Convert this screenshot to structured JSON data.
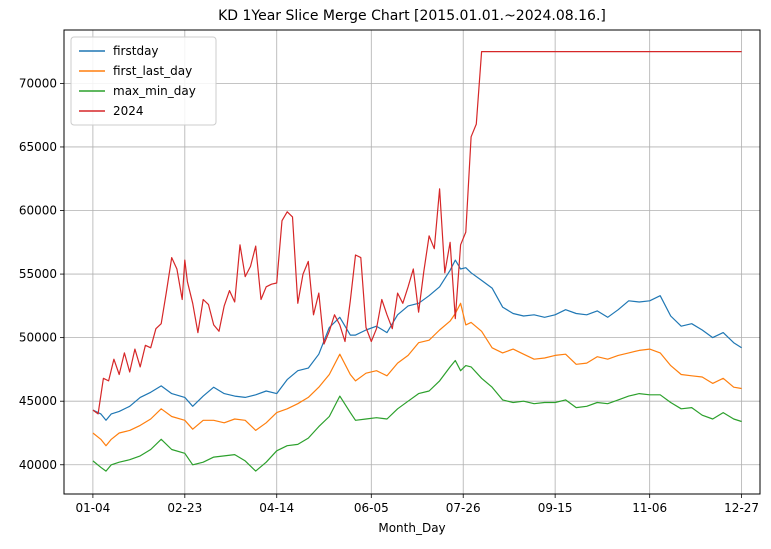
{
  "chart_data": {
    "type": "line",
    "title": "KD 1Year Slice Merge Chart [2015.01.01.~2024.08.16.]",
    "xlabel": "Month_Day",
    "ylabel": "",
    "x_tick_labels": [
      "01-04",
      "02-23",
      "04-14",
      "06-05",
      "07-26",
      "09-15",
      "11-06",
      "12-27"
    ],
    "x_tick_index": [
      0,
      35,
      70,
      106,
      141,
      176,
      212,
      247
    ],
    "xlim": [
      -11,
      254
    ],
    "ylim": [
      37700,
      74200
    ],
    "y_ticks": [
      40000,
      45000,
      50000,
      55000,
      60000,
      65000,
      70000
    ],
    "y_tick_labels": [
      "40000",
      "45000",
      "50000",
      "55000",
      "60000",
      "65000",
      "70000"
    ],
    "grid": true,
    "legend_position": "top-left",
    "series": [
      {
        "name": "firstday",
        "color": "#1f77b4",
        "x": [
          0,
          3,
          5,
          7,
          10,
          14,
          18,
          22,
          26,
          30,
          35,
          38,
          42,
          46,
          50,
          54,
          58,
          62,
          66,
          70,
          74,
          78,
          82,
          86,
          90,
          94,
          98,
          100,
          104,
          108,
          112,
          116,
          120,
          124,
          128,
          132,
          136,
          138,
          140,
          142,
          144,
          148,
          152,
          156,
          160,
          164,
          168,
          172,
          176,
          180,
          184,
          188,
          192,
          196,
          200,
          204,
          208,
          212,
          216,
          220,
          224,
          228,
          232,
          236,
          240,
          244,
          247
        ],
        "y": [
          44300,
          44000,
          43500,
          44000,
          44200,
          44600,
          45300,
          45700,
          46200,
          45600,
          45300,
          44600,
          45400,
          46100,
          45600,
          45400,
          45300,
          45500,
          45800,
          45600,
          46700,
          47400,
          47600,
          48700,
          50800,
          51600,
          50200,
          50200,
          50600,
          50900,
          50400,
          51800,
          52500,
          52700,
          53300,
          54000,
          55300,
          56100,
          55400,
          55500,
          55100,
          54500,
          53900,
          52400,
          51900,
          51700,
          51800,
          51600,
          51800,
          52200,
          51900,
          51800,
          52100,
          51600,
          52200,
          52900,
          52800,
          52900,
          53300,
          51700,
          50900,
          51100,
          50600,
          50000,
          50400,
          49600,
          49200
        ]
      },
      {
        "name": "first_last_day",
        "color": "#ff7f0e",
        "x": [
          0,
          3,
          5,
          7,
          10,
          14,
          18,
          22,
          26,
          30,
          35,
          38,
          42,
          46,
          50,
          54,
          58,
          62,
          66,
          70,
          74,
          78,
          82,
          86,
          90,
          94,
          98,
          100,
          104,
          108,
          112,
          116,
          120,
          124,
          128,
          132,
          136,
          138,
          140,
          142,
          144,
          148,
          152,
          156,
          160,
          164,
          168,
          172,
          176,
          180,
          184,
          188,
          192,
          196,
          200,
          204,
          208,
          212,
          216,
          220,
          224,
          228,
          232,
          236,
          240,
          244,
          247
        ],
        "y": [
          42500,
          42000,
          41500,
          42000,
          42500,
          42700,
          43100,
          43600,
          44400,
          43800,
          43500,
          42800,
          43500,
          43500,
          43300,
          43600,
          43500,
          42700,
          43300,
          44100,
          44400,
          44800,
          45300,
          46100,
          47100,
          48700,
          47100,
          46600,
          47200,
          47400,
          47000,
          48000,
          48600,
          49600,
          49800,
          50600,
          51300,
          51900,
          52700,
          51000,
          51200,
          50500,
          49200,
          48800,
          49100,
          48700,
          48300,
          48400,
          48600,
          48700,
          47900,
          48000,
          48500,
          48300,
          48600,
          48800,
          49000,
          49100,
          48800,
          47800,
          47100,
          47000,
          46900,
          46400,
          46800,
          46100,
          46000
        ]
      },
      {
        "name": "max_min_day",
        "color": "#2ca02c",
        "x": [
          0,
          3,
          5,
          7,
          10,
          14,
          18,
          22,
          26,
          30,
          35,
          38,
          42,
          46,
          50,
          54,
          58,
          62,
          66,
          70,
          74,
          78,
          82,
          86,
          90,
          94,
          98,
          100,
          104,
          108,
          112,
          116,
          120,
          124,
          128,
          132,
          136,
          138,
          140,
          142,
          144,
          148,
          152,
          156,
          160,
          164,
          168,
          172,
          176,
          180,
          184,
          188,
          192,
          196,
          200,
          204,
          208,
          212,
          216,
          220,
          224,
          228,
          232,
          236,
          240,
          244,
          247
        ],
        "y": [
          40300,
          39800,
          39500,
          40000,
          40200,
          40400,
          40700,
          41200,
          42000,
          41200,
          40900,
          40000,
          40200,
          40600,
          40700,
          40800,
          40300,
          39500,
          40200,
          41100,
          41500,
          41600,
          42100,
          43000,
          43800,
          45400,
          44100,
          43500,
          43600,
          43700,
          43600,
          44400,
          45000,
          45600,
          45800,
          46600,
          47700,
          48200,
          47400,
          47800,
          47700,
          46800,
          46100,
          45100,
          44900,
          45000,
          44800,
          44900,
          44900,
          45100,
          44500,
          44600,
          44900,
          44800,
          45100,
          45400,
          45600,
          45500,
          45500,
          44900,
          44400,
          44500,
          43900,
          43600,
          44100,
          43600,
          43400
        ]
      },
      {
        "name": "2024",
        "color": "#d62728",
        "x": [
          0,
          2,
          4,
          6,
          8,
          10,
          12,
          14,
          16,
          18,
          20,
          22,
          24,
          26,
          28,
          30,
          32,
          34,
          35,
          36,
          38,
          40,
          42,
          44,
          46,
          48,
          50,
          52,
          54,
          56,
          58,
          60,
          62,
          64,
          66,
          68,
          70,
          72,
          74,
          76,
          78,
          80,
          82,
          84,
          86,
          88,
          90,
          92,
          94,
          96,
          98,
          100,
          102,
          104,
          106,
          108,
          110,
          112,
          114,
          116,
          118,
          120,
          122,
          124,
          126,
          128,
          130,
          132,
          134,
          136,
          138,
          140,
          142,
          144,
          146,
          148,
          150,
          152,
          154,
          156,
          247
        ],
        "y": [
          44300,
          44000,
          46800,
          46600,
          48300,
          47100,
          48800,
          47300,
          49100,
          47700,
          49400,
          49200,
          50700,
          51100,
          53600,
          56300,
          55400,
          53000,
          56100,
          54400,
          52700,
          50400,
          53000,
          52600,
          51000,
          50500,
          52500,
          53700,
          52800,
          57300,
          54800,
          55600,
          57200,
          53000,
          54000,
          54200,
          54300,
          59200,
          59900,
          59500,
          52700,
          55000,
          56000,
          51800,
          53500,
          49500,
          50500,
          51800,
          51000,
          49700,
          52900,
          56500,
          56300,
          50800,
          49700,
          50700,
          53000,
          51800,
          50700,
          53500,
          52700,
          54000,
          55400,
          52000,
          55200,
          58000,
          57000,
          61700,
          55100,
          57500,
          51500,
          57300,
          58300,
          65800,
          66800,
          72500,
          72500,
          72500,
          72500,
          72500,
          72500
        ]
      }
    ]
  }
}
